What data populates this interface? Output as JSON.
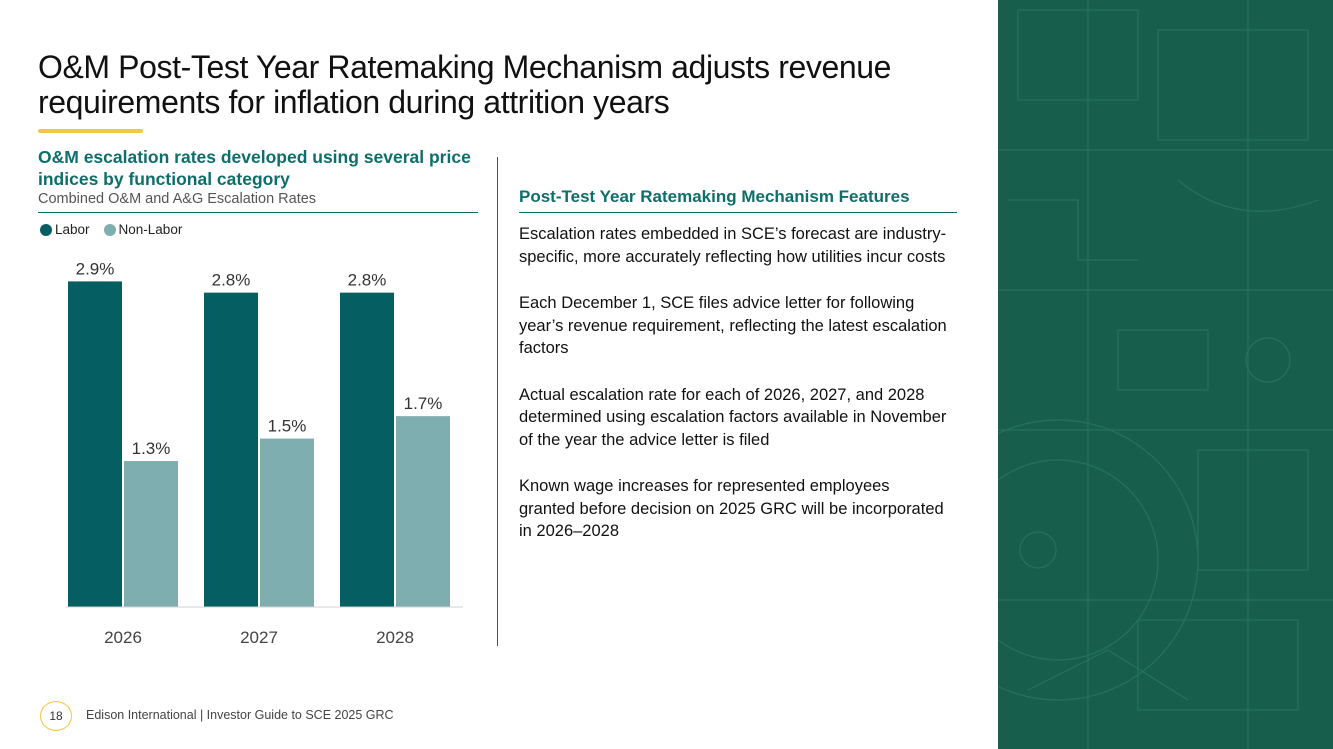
{
  "title": "O&M Post-Test Year Ratemaking Mechanism adjusts revenue requirements for inflation during attrition years",
  "chart_heading": "O&M escalation rates developed using several price indices by functional category",
  "chart_subtitle": "Combined O&M and A&G Escalation Rates",
  "chart_data": {
    "type": "bar",
    "title": "Combined O&M and A&G Escalation Rates",
    "categories": [
      "2026",
      "2027",
      "2028"
    ],
    "series": [
      {
        "name": "Labor",
        "values": [
          2.9,
          2.8,
          2.8
        ],
        "labels": [
          "2.9%",
          "2.8%",
          "2.8%"
        ],
        "color": "#055f62"
      },
      {
        "name": "Non-Labor",
        "values": [
          1.3,
          1.5,
          1.7
        ],
        "labels": [
          "1.3%",
          "1.5%",
          "1.7%"
        ],
        "color": "#7eaeb0"
      }
    ],
    "xlabel": "",
    "ylabel": "",
    "ylim": [
      0,
      3.0
    ],
    "grid": false,
    "legend": "top-left"
  },
  "features": {
    "heading": "Post-Test Year Ratemaking Mechanism Features",
    "items": [
      "Escalation rates embedded in SCE’s forecast are industry-specific, more accurately reflecting how utilities incur costs",
      "Each December 1, SCE files advice letter for following year’s revenue requirement, reflecting the latest escalation factors",
      "Actual escalation rate for each of 2026, 2027, and 2028 determined using escalation factors available in November of the year the advice letter is filed",
      "Known wage increases for represented employees granted before decision on 2025 GRC will be incorporated in 2026–2028"
    ]
  },
  "footer": {
    "page_number": "18",
    "text": "Edison International | Investor Guide to SCE 2025 GRC"
  },
  "colors": {
    "accent": "#0e6e6b",
    "highlight": "#f2c744",
    "panel": "#175f4c"
  }
}
